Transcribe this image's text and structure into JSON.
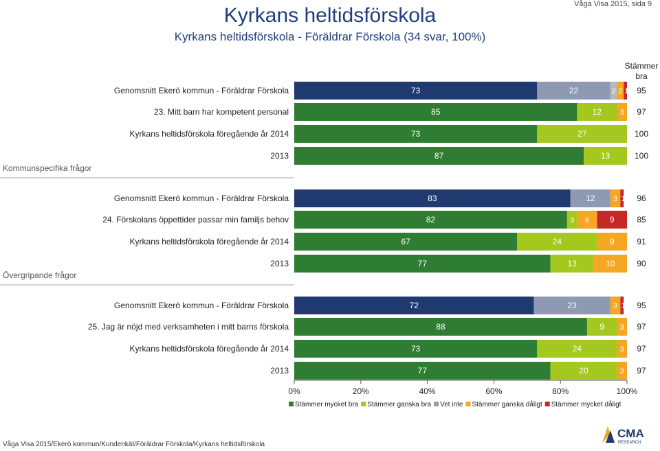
{
  "header": {
    "title": "Kyrkans heltidsförskola",
    "subtitle": "Kyrkans heltidsförskola - Föräldrar Förskola (34 svar, 100%)",
    "page_ref": "Våga Visa 2015, sida 9"
  },
  "footer": {
    "path": "Våga Visa 2015/Ekerö kommun/Kundenkät/Föräldrar Förskola/Kyrkans heltidsförskola",
    "logo_text": "CMA",
    "logo_subtext": "RESEARCH"
  },
  "chart_data": {
    "type": "bar",
    "orientation": "horizontal",
    "stacked": true,
    "right_column_header": "Stämmer bra",
    "xlim": [
      0,
      100
    ],
    "x_ticks": [
      "0%",
      "20%",
      "40%",
      "60%",
      "80%",
      "100%"
    ],
    "legend_position": "bottom",
    "series": [
      {
        "name": "Stämmer mycket bra",
        "color": "#2e7d32"
      },
      {
        "name": "Stämmer ganska bra",
        "color": "#a5c81e"
      },
      {
        "name": "Vet inte",
        "color": "#9e9e9e"
      },
      {
        "name": "Stämmer ganska dåligt",
        "color": "#f5a623"
      },
      {
        "name": "Stämmer mycket dåligt",
        "color": "#c62828"
      }
    ],
    "groups": [
      {
        "section": "Kommunspecifika frågor",
        "rows": [
          {
            "label": "Genomsnitt Ekerö kommun - Föräldrar Förskola",
            "values": [
              73,
              22,
              2,
              2,
              1
            ],
            "labels": [
              "73",
              "22",
              "2",
              "2",
              "1"
            ],
            "score": "95",
            "colors": [
              "#1f3a6e",
              "#8e99b3",
              "#b8b8b8",
              "#f5a623",
              "#c62828"
            ]
          },
          {
            "label": "23. Mitt barn har kompetent personal",
            "values": [
              85,
              12,
              0,
              3,
              0
            ],
            "labels": [
              "85",
              "12",
              "0",
              "3",
              "0"
            ],
            "score": "97"
          },
          {
            "label": "Kyrkans heltidsförskola föregående år 2014",
            "values": [
              73,
              27,
              0,
              0,
              0
            ],
            "labels": [
              "73",
              "27",
              "0",
              "",
              ""
            ],
            "score": "100"
          },
          {
            "label": "2013",
            "values": [
              87,
              13,
              0,
              0,
              0
            ],
            "labels": [
              "87",
              "13",
              "0",
              "",
              ""
            ],
            "score": "100"
          }
        ]
      },
      {
        "section": "Övergripande frågor",
        "rows": [
          {
            "label": "Genomsnitt Ekerö kommun - Föräldrar Förskola",
            "values": [
              83,
              12,
              0,
              3,
              1
            ],
            "labels": [
              "83",
              "12",
              "0",
              "3",
              "1"
            ],
            "score": "96",
            "colors": [
              "#1f3a6e",
              "#8e99b3",
              "#b8b8b8",
              "#f5a623",
              "#c62828"
            ]
          },
          {
            "label": "24. Förskolans öppettider passar min familjs behov",
            "values": [
              82,
              3,
              0,
              6,
              9
            ],
            "labels": [
              "82",
              "3",
              "0",
              "6",
              "9"
            ],
            "score": "85"
          },
          {
            "label": "Kyrkans heltidsförskola föregående år 2014",
            "values": [
              67,
              24,
              0,
              9,
              0
            ],
            "labels": [
              "67",
              "24",
              "0",
              "9",
              "0"
            ],
            "score": "91"
          },
          {
            "label": "2013",
            "values": [
              77,
              13,
              0,
              10,
              0
            ],
            "labels": [
              "77",
              "13",
              "0",
              "10",
              "0"
            ],
            "score": "90"
          }
        ]
      },
      {
        "section": "",
        "rows": [
          {
            "label": "Genomsnitt Ekerö kommun - Föräldrar Förskola",
            "values": [
              72,
              23,
              0,
              3,
              1
            ],
            "labels": [
              "72",
              "23",
              "0",
              "3",
              "1"
            ],
            "score": "95",
            "colors": [
              "#1f3a6e",
              "#8e99b3",
              "#b8b8b8",
              "#f5a623",
              "#c62828"
            ]
          },
          {
            "label": "25. Jag är nöjd med verksamheten i mitt barns förskola",
            "values": [
              88,
              9,
              0,
              3,
              0
            ],
            "labels": [
              "88",
              "9",
              "0",
              "3",
              "0"
            ],
            "score": "97"
          },
          {
            "label": "Kyrkans heltidsförskola föregående år 2014",
            "values": [
              73,
              24,
              0,
              3,
              0
            ],
            "labels": [
              "73",
              "24",
              "0",
              "3",
              "0"
            ],
            "score": "97"
          },
          {
            "label": "2013",
            "values": [
              77,
              20,
              0,
              3,
              0
            ],
            "labels": [
              "77",
              "20",
              "",
              "3",
              "0"
            ],
            "score": "97"
          }
        ]
      }
    ]
  }
}
